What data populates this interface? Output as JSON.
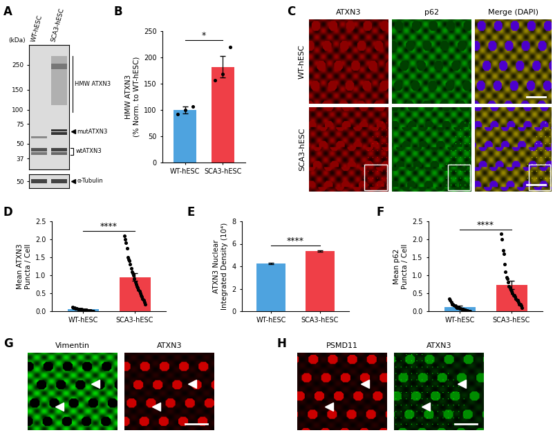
{
  "panel_labels": [
    "A",
    "B",
    "C",
    "D",
    "E",
    "F",
    "G",
    "H"
  ],
  "blot": {
    "lanes": [
      "WT-hESC",
      "SCA3-hESC"
    ],
    "axis_title": "(kDa)",
    "markers": [
      250,
      150,
      100,
      75,
      50,
      37
    ],
    "loading_marker": 50,
    "labels": {
      "hmw": "HMW ATXN3",
      "mut": "mutATXN3",
      "wt": "wtATXN3",
      "loading": "α-Tubulin"
    }
  },
  "chart_data": [
    {
      "type": "bar",
      "ylabel": "HMW ATXN3\n(% Norm. to WT-hESC)",
      "categories": [
        "WT-hESC",
        "SCA3-hESC"
      ],
      "values": [
        100,
        182
      ],
      "errors": [
        6,
        20
      ],
      "colors": [
        "#4ea3df",
        "#ef3f47"
      ],
      "points": [
        [
          92,
          100,
          107
        ],
        [
          157,
          168,
          220
        ]
      ],
      "ylim": [
        0,
        250
      ],
      "yticks": [
        0,
        50,
        100,
        150,
        200,
        250
      ],
      "significance": "*"
    },
    {
      "type": "bar",
      "ylabel": "Mean ATXN3\nPuncta / Cell",
      "categories": [
        "WT-hESC",
        "SCA3-hESC"
      ],
      "values": [
        0.05,
        0.95
      ],
      "errors": [
        0.01,
        0.11
      ],
      "colors": [
        "#4ea3df",
        "#ef3f47"
      ],
      "points": [
        [
          0.12,
          0.1,
          0.1,
          0.08,
          0.08,
          0.07,
          0.06,
          0.06,
          0.05,
          0.05,
          0.05,
          0.04,
          0.04,
          0.04,
          0.03,
          0.03,
          0.03,
          0.02,
          0.02,
          0.02,
          0.01,
          0.01,
          0.0,
          0.0,
          0.0
        ],
        [
          2.1,
          2.0,
          1.9,
          1.75,
          1.5,
          1.45,
          1.4,
          1.3,
          1.2,
          1.1,
          1.05,
          1.0,
          0.9,
          0.8,
          0.75,
          0.7,
          0.65,
          0.6,
          0.55,
          0.5,
          0.45,
          0.4,
          0.35,
          0.3,
          0.25,
          0.2
        ]
      ],
      "ylim": [
        0,
        2.5
      ],
      "yticks": [
        {
          "value": 0,
          "label": "0.0"
        },
        {
          "value": 0.5,
          "label": "0.5"
        },
        {
          "value": 1,
          "label": "1.0"
        },
        {
          "value": 1.5,
          "label": "1.5"
        },
        {
          "value": 2,
          "label": "2.0"
        },
        {
          "value": 2.5,
          "label": "2.5"
        }
      ],
      "significance": "****"
    },
    {
      "type": "bar",
      "ylabel": "ATXN3 Nuclear\nIntegrated Density (10⁴)",
      "categories": [
        "WT-hESC",
        "SCA3-hESC"
      ],
      "values": [
        4.25,
        5.35
      ],
      "errors": [
        0.05,
        0.07
      ],
      "colors": [
        "#4ea3df",
        "#ef3f47"
      ],
      "ylim": [
        0,
        8
      ],
      "yticks": [
        0,
        2,
        4,
        6,
        8
      ],
      "significance": "****"
    },
    {
      "type": "bar",
      "ylabel": "Mean p62\nPuncta / Cell",
      "categories": [
        "WT-hESC",
        "SCA3-hESC"
      ],
      "values": [
        0.12,
        0.73
      ],
      "errors": [
        0.03,
        0.12
      ],
      "colors": [
        "#4ea3df",
        "#ef3f47"
      ],
      "points": [
        [
          0.35,
          0.3,
          0.25,
          0.2,
          0.2,
          0.18,
          0.15,
          0.15,
          0.12,
          0.1,
          0.1,
          0.1,
          0.08,
          0.08,
          0.06,
          0.05,
          0.05,
          0.04,
          0.03,
          0.02,
          0.02,
          0.01,
          0.0,
          0.0,
          0.0
        ],
        [
          2.15,
          2.0,
          1.7,
          1.6,
          1.3,
          1.1,
          0.95,
          0.9,
          0.8,
          0.7,
          0.65,
          0.6,
          0.55,
          0.5,
          0.45,
          0.45,
          0.4,
          0.35,
          0.3,
          0.3,
          0.25,
          0.2,
          0.2,
          0.15,
          0.1
        ]
      ],
      "ylim": [
        0,
        2.5
      ],
      "yticks": [
        {
          "value": 0,
          "label": "0.0"
        },
        {
          "value": 0.5,
          "label": "0.5"
        },
        {
          "value": 1,
          "label": "1.0"
        },
        {
          "value": 1.5,
          "label": "1.5"
        },
        {
          "value": 2,
          "label": "2.0"
        },
        {
          "value": 2.5,
          "label": "2.5"
        }
      ],
      "significance": "****"
    }
  ],
  "images": {
    "C": {
      "columns": [
        "ATXN3",
        "p62",
        "Merge (DAPI)"
      ],
      "rows": [
        "WT-hESC",
        "SCA3-hESC"
      ]
    },
    "G": {
      "columns": [
        "Vimentin",
        "ATXN3"
      ]
    },
    "H": {
      "columns": [
        "PSMD11",
        "ATXN3"
      ]
    }
  }
}
